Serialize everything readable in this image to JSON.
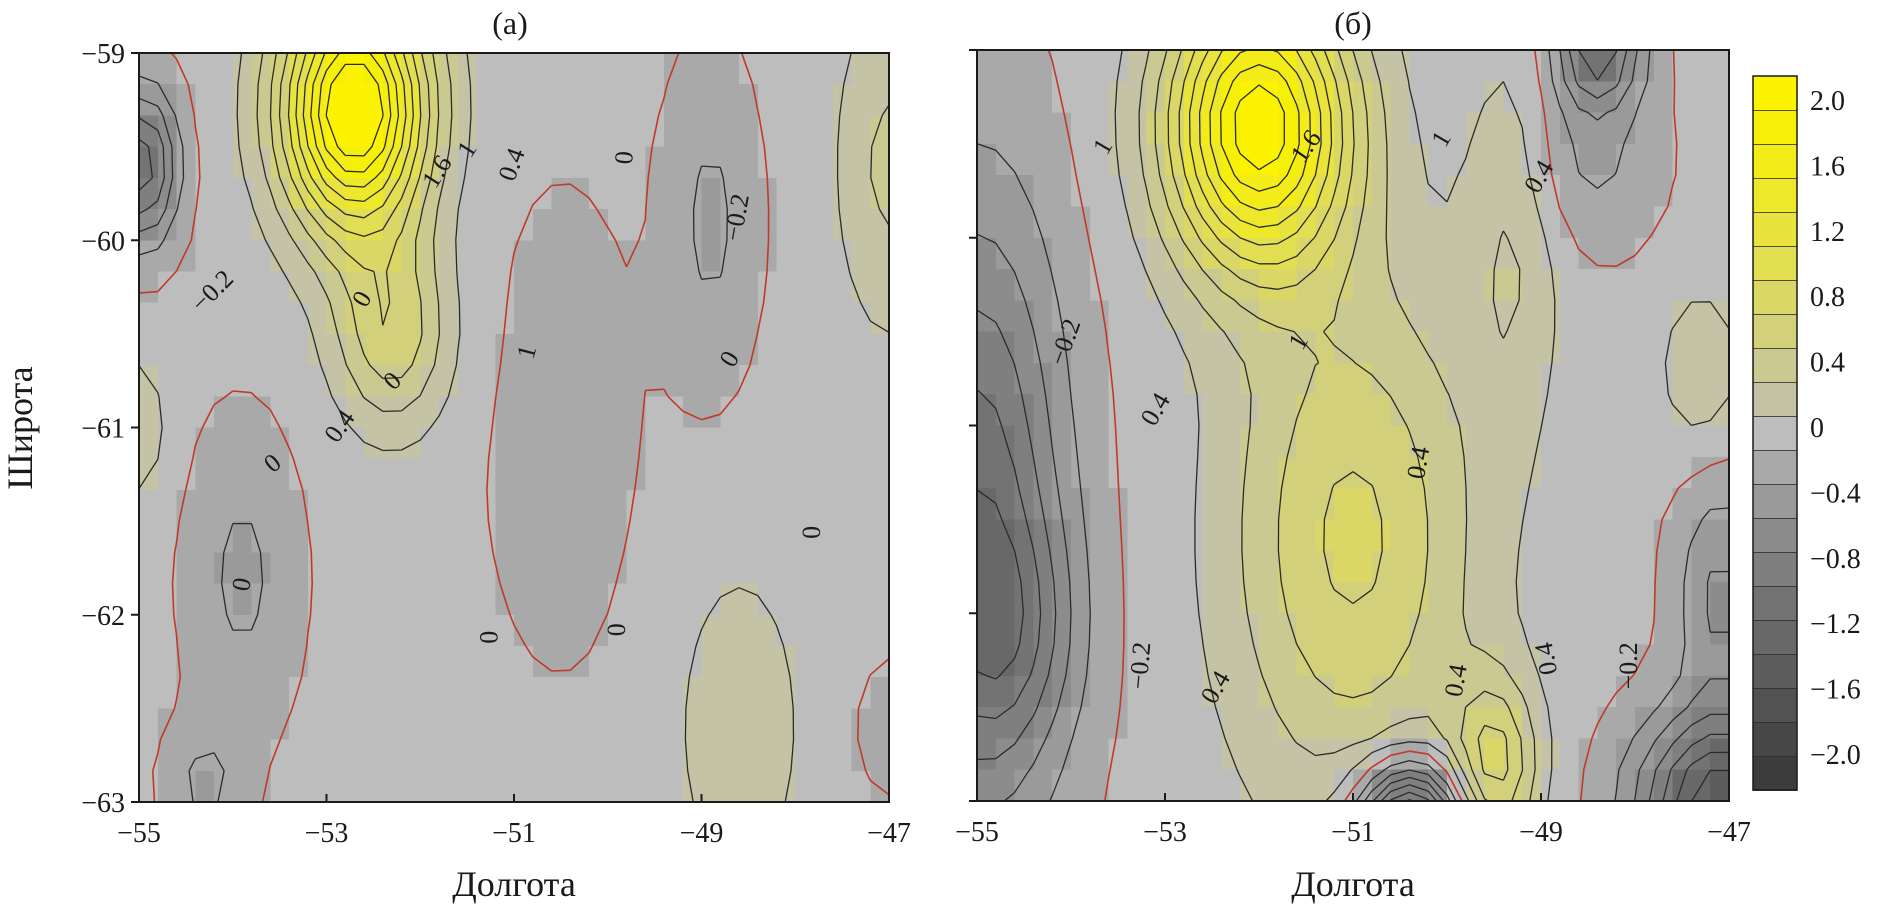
{
  "chart_data": [
    {
      "type": "heatmap",
      "title": "(а)",
      "xlabel": "Долгота",
      "ylabel": "Широта",
      "xlim": [
        -55,
        -47
      ],
      "ylim": [
        -63,
        -59
      ],
      "x_ticks": [
        "−55",
        "−53",
        "−51",
        "−49",
        "−47"
      ],
      "y_ticks": [
        "−59",
        "−60",
        "−61",
        "−62",
        "−63"
      ],
      "contour_labels": [
        "1.6",
        "1",
        "0.4",
        "0",
        "−0.2",
        "0",
        "0",
        "0",
        "1",
        "0",
        "0.4",
        "−0.2",
        "0",
        "0",
        "0",
        "0"
      ],
      "bumps": [
        {
          "x": -52.7,
          "y": -59.3,
          "sx": 0.75,
          "sy": 0.65,
          "a": 2.3
        },
        {
          "x": -52.3,
          "y": -60.5,
          "sx": 0.6,
          "sy": 0.5,
          "a": 0.7
        },
        {
          "x": -54.95,
          "y": -59.6,
          "sx": 0.35,
          "sy": 0.4,
          "a": -1.0
        },
        {
          "x": -53.9,
          "y": -61.8,
          "sx": 0.55,
          "sy": 0.75,
          "a": -0.3
        },
        {
          "x": -48.9,
          "y": -59.9,
          "sx": 0.45,
          "sy": 0.8,
          "a": -0.3
        },
        {
          "x": -48.6,
          "y": -62.6,
          "sx": 0.7,
          "sy": 0.9,
          "a": 0.3
        },
        {
          "x": -47.0,
          "y": -59.6,
          "sx": 0.55,
          "sy": 0.9,
          "a": 0.4
        },
        {
          "x": -55.0,
          "y": -61.0,
          "sx": 0.3,
          "sy": 0.4,
          "a": 0.3
        },
        {
          "x": -54.3,
          "y": -62.9,
          "sx": 0.4,
          "sy": 0.3,
          "a": -0.3
        },
        {
          "x": -50.5,
          "y": -61.0,
          "sx": 0.9,
          "sy": 1.4,
          "a": -0.12
        },
        {
          "x": -47.0,
          "y": -62.6,
          "sx": 0.3,
          "sy": 0.3,
          "a": -0.2
        }
      ]
    },
    {
      "type": "heatmap",
      "title": "(б)",
      "xlabel": "Долгота",
      "ylabel": "",
      "xlim": [
        -55,
        -47
      ],
      "ylim": [
        -63,
        -59
      ],
      "x_ticks": [
        "−55",
        "−53",
        "−51",
        "−49",
        "−47"
      ],
      "y_ticks": [
        "",
        "",
        "",
        "",
        ""
      ],
      "contour_labels": [
        "1.6",
        "1",
        "1",
        "1",
        "0.4",
        "−0.2",
        "0.4",
        "0.4",
        "−0.2",
        "0.4",
        "0.4",
        "0.4",
        "−0.2"
      ],
      "bumps": [
        {
          "x": -52.0,
          "y": -59.4,
          "sx": 0.95,
          "sy": 0.75,
          "a": 2.1
        },
        {
          "x": -51.0,
          "y": -61.6,
          "sx": 1.3,
          "sy": 1.4,
          "a": 0.8
        },
        {
          "x": -49.5,
          "y": -62.8,
          "sx": 0.45,
          "sy": 0.45,
          "a": 0.8
        },
        {
          "x": -55.0,
          "y": -61.5,
          "sx": 0.9,
          "sy": 1.7,
          "a": -1.0
        },
        {
          "x": -54.6,
          "y": -62.1,
          "sx": 0.7,
          "sy": 0.6,
          "a": -0.4
        },
        {
          "x": -50.4,
          "y": -63.05,
          "sx": 0.55,
          "sy": 0.25,
          "a": -1.6
        },
        {
          "x": -47.1,
          "y": -63.0,
          "sx": 0.85,
          "sy": 0.45,
          "a": -1.4
        },
        {
          "x": -47.1,
          "y": -61.9,
          "sx": 0.45,
          "sy": 0.6,
          "a": -0.5
        },
        {
          "x": -48.4,
          "y": -59.0,
          "sx": 0.45,
          "sy": 0.3,
          "a": -1.0
        },
        {
          "x": -47.3,
          "y": -60.7,
          "sx": 0.45,
          "sy": 0.45,
          "a": 0.3
        },
        {
          "x": -49.3,
          "y": -60.0,
          "sx": 0.5,
          "sy": 1.0,
          "a": 0.35
        },
        {
          "x": -48.5,
          "y": -59.6,
          "sx": 0.7,
          "sy": 0.45,
          "a": -0.3
        }
      ]
    }
  ],
  "colorbar": {
    "tick_labels": [
      "2.0",
      "1.6",
      "1.2",
      "0.8",
      "0.4",
      "0",
      "−0.4",
      "−0.8",
      "−1.2",
      "−1.6",
      "−2.0"
    ],
    "levels": [
      -2.0,
      -1.8,
      -1.6,
      -1.4,
      -1.2,
      -1.0,
      -0.8,
      -0.6,
      -0.4,
      -0.2,
      0,
      0.2,
      0.4,
      0.6,
      0.8,
      1.0,
      1.2,
      1.4,
      1.6,
      1.8,
      2.0,
      2.2
    ],
    "colors": [
      "#3c3c3c",
      "#474747",
      "#525252",
      "#5d5d5d",
      "#686868",
      "#737373",
      "#7f7f7f",
      "#8c8c8c",
      "#9a9a9a",
      "#a9a9a9",
      "#bdbdbd",
      "#c4c3a6",
      "#cbc992",
      "#d3d07c",
      "#dbd767",
      "#e2de52",
      "#e8e33d",
      "#eee82a",
      "#f3ec18",
      "#f6ef08",
      "#fbf300"
    ]
  },
  "colors": {
    "zero_contour": "#c0392b",
    "contour": "#2b2b2b"
  }
}
